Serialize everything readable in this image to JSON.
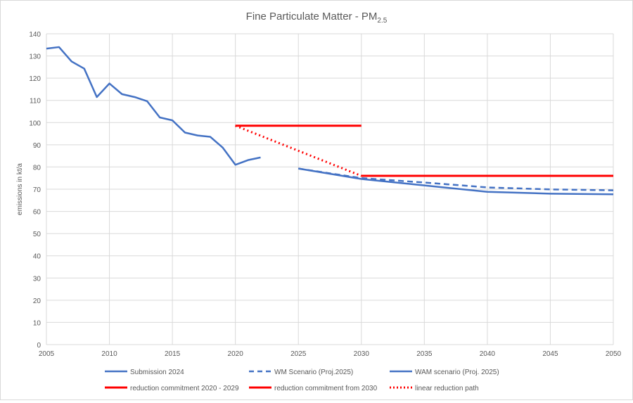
{
  "chart_data": {
    "type": "line",
    "title": "Fine Particulate Matter - PM",
    "title_subscript": "2.5",
    "xlabel": "",
    "ylabel": "emissions in kt/a",
    "xlim": [
      2005,
      2050
    ],
    "ylim": [
      0,
      140
    ],
    "xticks": [
      2005,
      2010,
      2015,
      2020,
      2025,
      2030,
      2035,
      2040,
      2045,
      2050
    ],
    "yticks": [
      0,
      10,
      20,
      30,
      40,
      50,
      60,
      70,
      80,
      90,
      100,
      110,
      120,
      130,
      140
    ],
    "grid": true,
    "legend_position": "bottom",
    "series": [
      {
        "name": "Submission 2024",
        "color": "#4472C4",
        "style": "solid",
        "x": [
          2005,
          2006,
          2007,
          2008,
          2009,
          2010,
          2011,
          2012,
          2013,
          2014,
          2015,
          2016,
          2017,
          2018,
          2019,
          2020,
          2021,
          2022
        ],
        "y": [
          133.3,
          134.0,
          127.5,
          124.3,
          111.5,
          117.6,
          112.8,
          111.5,
          109.6,
          102.3,
          101.0,
          95.5,
          94.2,
          93.6,
          88.7,
          81.0,
          83.1,
          84.3
        ]
      },
      {
        "name": "WM Scenario (Proj.2025)",
        "color": "#4472C4",
        "style": "dashed",
        "x": [
          2025,
          2030,
          2035,
          2040,
          2045,
          2050
        ],
        "y": [
          79.3,
          75.0,
          73.0,
          70.8,
          69.9,
          69.5
        ]
      },
      {
        "name": "WAM scenario (Proj. 2025)",
        "color": "#4472C4",
        "style": "solid",
        "x": [
          2025,
          2030,
          2035,
          2040,
          2045,
          2050
        ],
        "y": [
          79.3,
          74.6,
          71.7,
          68.8,
          68.0,
          67.7
        ]
      },
      {
        "name": "reduction commitment 2020 - 2029",
        "color": "#FF0000",
        "style": "solid",
        "x": [
          2020,
          2030
        ],
        "y": [
          98.6,
          98.6
        ]
      },
      {
        "name": "reduction commitment from 2030",
        "color": "#FF0000",
        "style": "solid",
        "x": [
          2030,
          2050
        ],
        "y": [
          76.0,
          76.0
        ]
      },
      {
        "name": "linear reduction path",
        "color": "#FF0000",
        "style": "dotted",
        "x": [
          2020,
          2030
        ],
        "y": [
          98.6,
          76.0
        ]
      }
    ]
  }
}
